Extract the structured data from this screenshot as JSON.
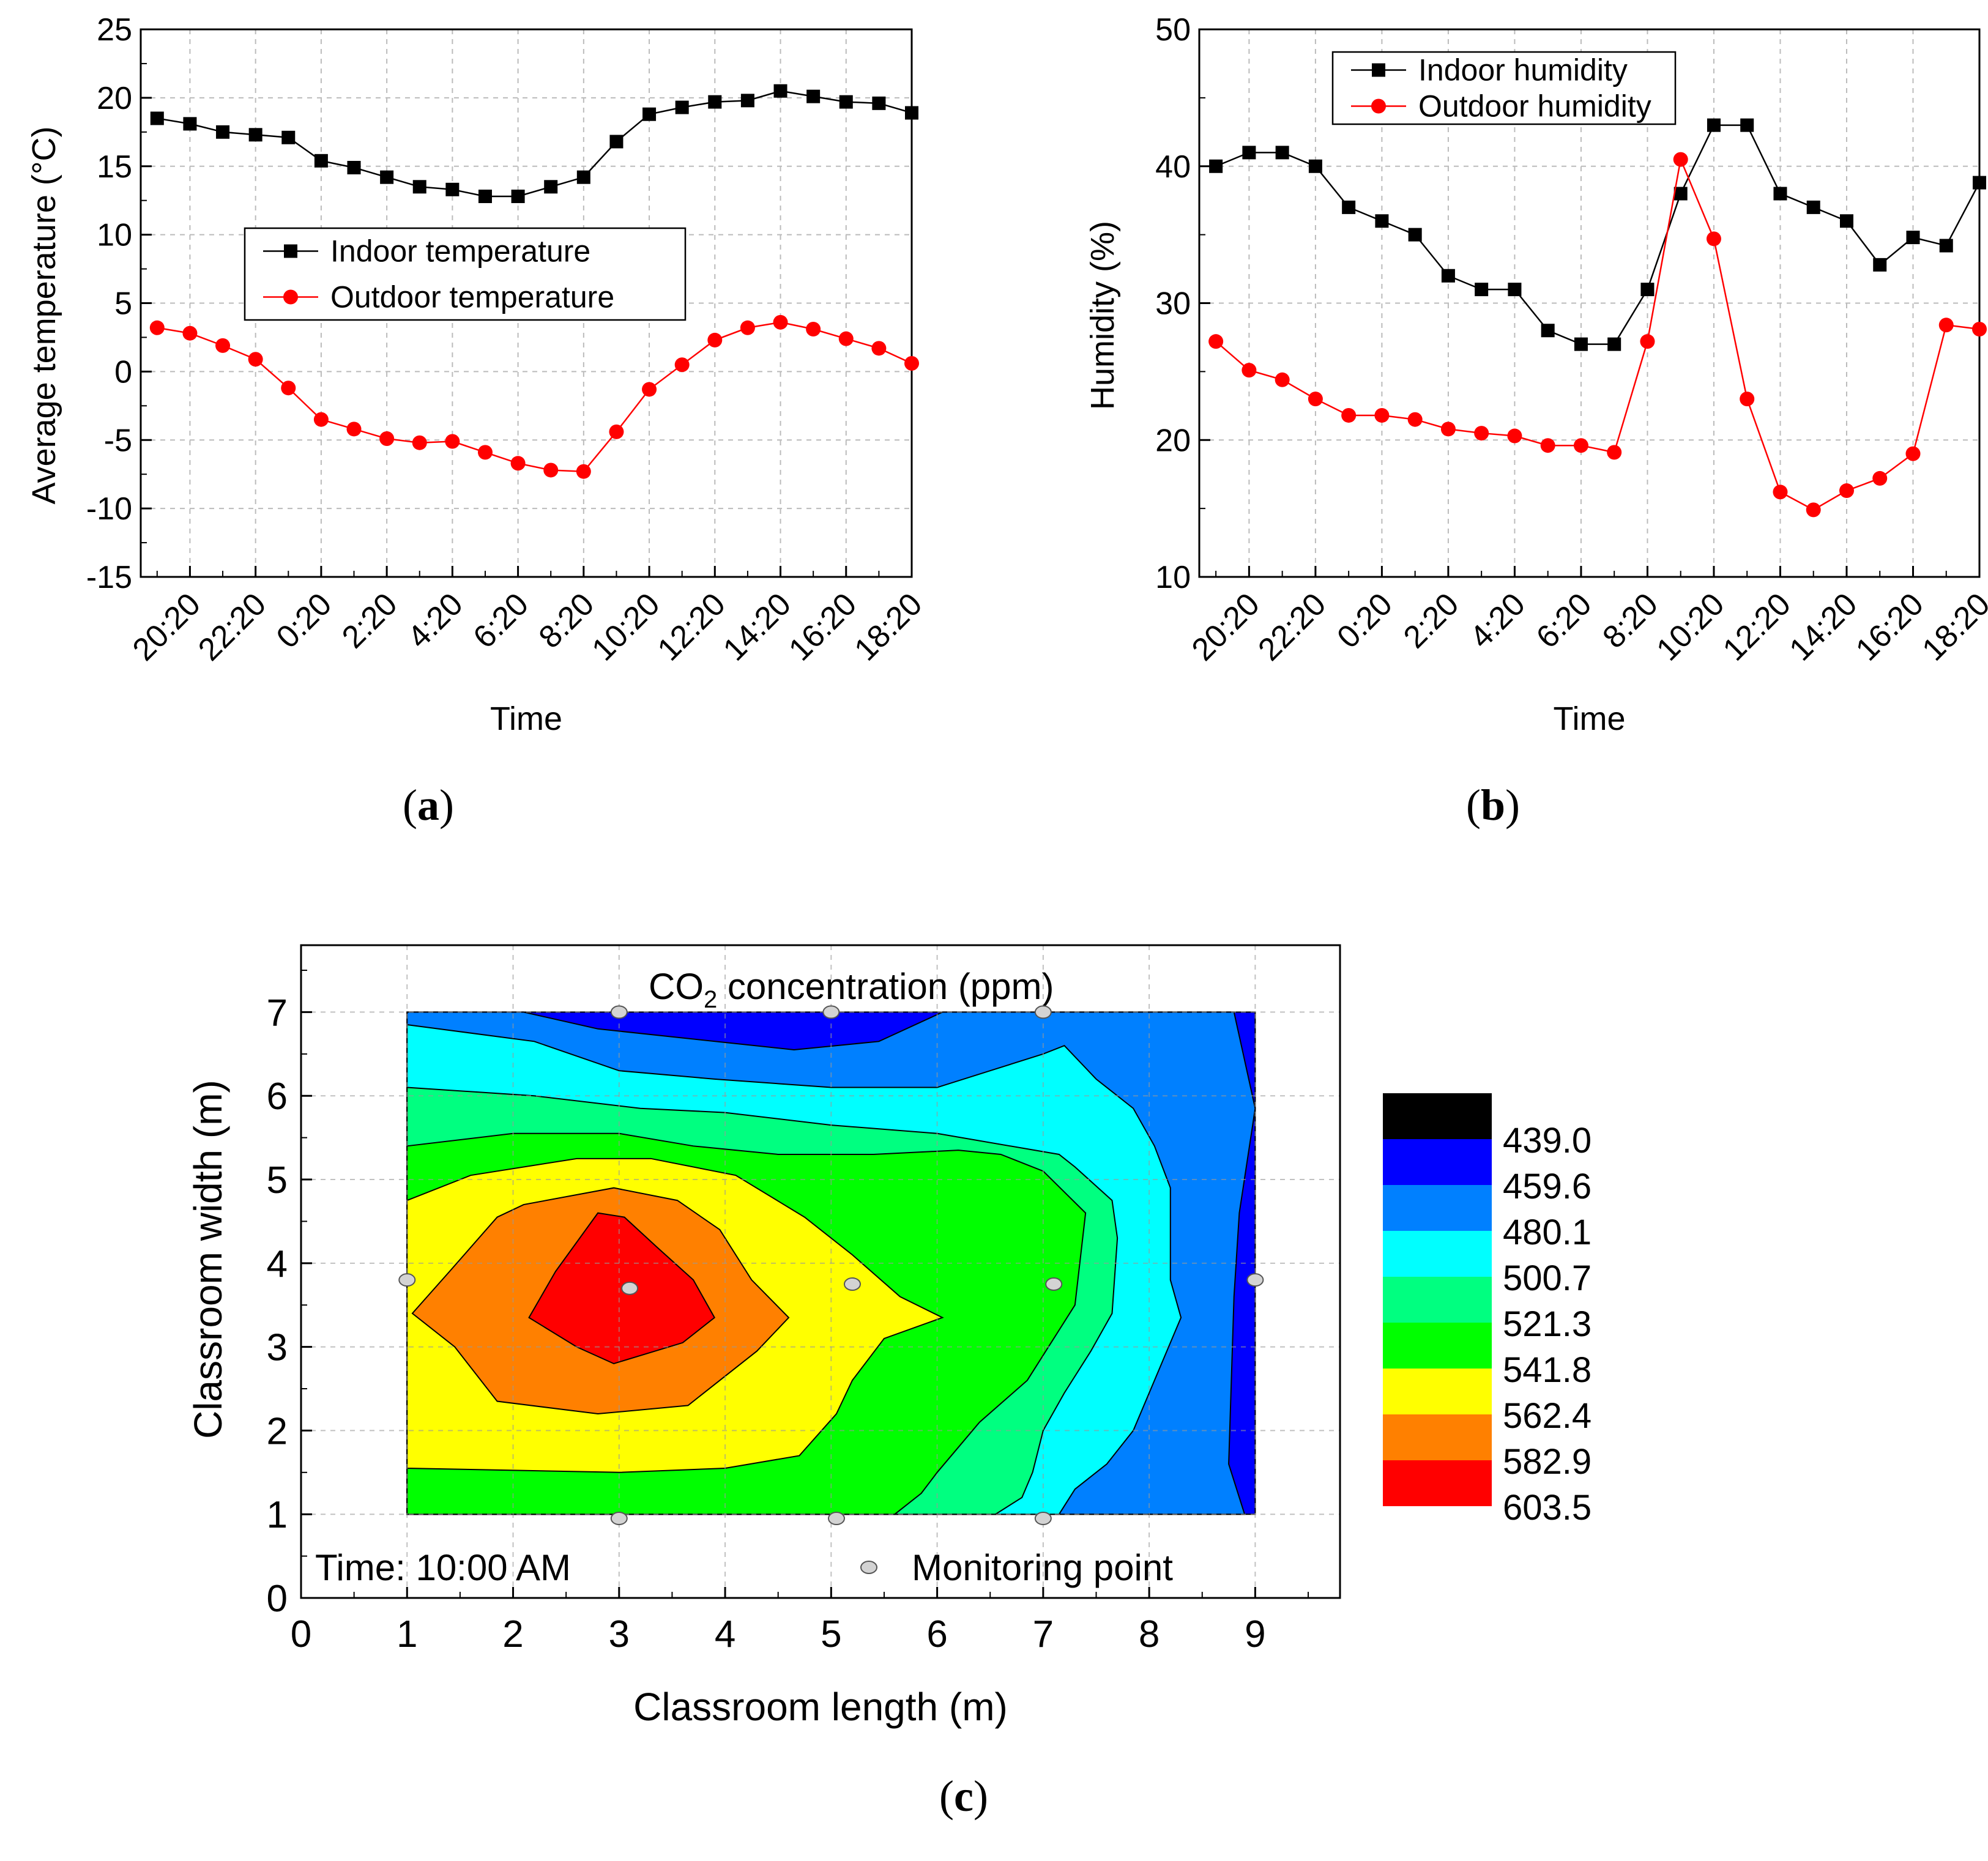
{
  "chart_data": [
    {
      "type": "line",
      "panel_label": "a",
      "xlabel": "Time",
      "ylabel": "Average temperature (°C)",
      "ylim": [
        -15,
        25
      ],
      "yticks": [
        -15,
        -10,
        -5,
        0,
        5,
        10,
        15,
        20,
        25
      ],
      "x_tick_labels": [
        "20:20",
        "22:20",
        "0:20",
        "2:20",
        "4:20",
        "6:20",
        "8:20",
        "10:20",
        "12:20",
        "14:20",
        "16:20",
        "18:20"
      ],
      "x": [
        0,
        1,
        2,
        3,
        4,
        5,
        6,
        7,
        8,
        9,
        10,
        11,
        12,
        13,
        14,
        15,
        16,
        17,
        18,
        19,
        20,
        21,
        22,
        23
      ],
      "grid": true,
      "legend_position": "center-left",
      "series": [
        {
          "name": "Indoor temperature",
          "color": "#000000",
          "marker": "square",
          "values": [
            18.5,
            18.1,
            17.5,
            17.3,
            17.1,
            15.4,
            14.9,
            14.2,
            13.5,
            13.3,
            12.8,
            12.8,
            13.5,
            14.2,
            16.8,
            18.8,
            19.3,
            19.7,
            19.8,
            20.5,
            20.1,
            19.7,
            19.6,
            18.9
          ]
        },
        {
          "name": "Outdoor temperature",
          "color": "#ff0000",
          "marker": "circle",
          "values": [
            3.2,
            2.8,
            1.9,
            0.9,
            -1.2,
            -3.5,
            -4.2,
            -4.9,
            -5.2,
            -5.1,
            -5.9,
            -6.7,
            -7.2,
            -7.3,
            -4.4,
            -1.3,
            0.5,
            2.3,
            3.2,
            3.6,
            3.1,
            2.4,
            1.7,
            0.6
          ]
        }
      ]
    },
    {
      "type": "line",
      "panel_label": "b",
      "xlabel": "Time",
      "ylabel": "Humidity (%)",
      "ylim": [
        10,
        50
      ],
      "yticks": [
        10,
        20,
        30,
        40,
        50
      ],
      "x_tick_labels": [
        "20:20",
        "22:20",
        "0:20",
        "2:20",
        "4:20",
        "6:20",
        "8:20",
        "10:20",
        "12:20",
        "14:20",
        "16:20",
        "18:20"
      ],
      "x": [
        0,
        1,
        2,
        3,
        4,
        5,
        6,
        7,
        8,
        9,
        10,
        11,
        12,
        13,
        14,
        15,
        16,
        17,
        18,
        19,
        20,
        21,
        22,
        23
      ],
      "grid": true,
      "legend_position": "top-left",
      "series": [
        {
          "name": "Indoor humidity",
          "color": "#000000",
          "marker": "square",
          "values": [
            40,
            41,
            41,
            40,
            37,
            36,
            35,
            32,
            31,
            31,
            28,
            27,
            27,
            31,
            38,
            43,
            43,
            38,
            37,
            36,
            32.8,
            34.8,
            34.2,
            38.8
          ]
        },
        {
          "name": "Outdoor humidity",
          "color": "#ff0000",
          "marker": "circle",
          "values": [
            27.2,
            25.1,
            24.4,
            23,
            21.8,
            21.8,
            21.5,
            20.8,
            20.5,
            20.3,
            19.6,
            19.6,
            19.1,
            27.2,
            40.5,
            34.7,
            23,
            16.2,
            14.9,
            16.3,
            17.2,
            19,
            28.4,
            28.1
          ]
        }
      ]
    },
    {
      "type": "heatmap",
      "panel_label": "c",
      "title": "CO",
      "title_subscript": "2",
      "title_suffix": " concentration (ppm)",
      "xlabel": "Classroom length (m)",
      "ylabel": "Classroom width (m)",
      "xlim": [
        0,
        9.8
      ],
      "ylim": [
        0,
        7.8
      ],
      "xticks": [
        0,
        1,
        2,
        3,
        4,
        5,
        6,
        7,
        8,
        9
      ],
      "yticks": [
        0,
        1,
        2,
        3,
        4,
        5,
        6,
        7
      ],
      "annotation": "Time: 10:00 AM",
      "legend_label": "Monitoring point",
      "colorbar": {
        "labels": [
          "439.0",
          "459.6",
          "480.1",
          "500.7",
          "521.3",
          "541.8",
          "562.4",
          "582.9",
          "603.5"
        ],
        "colors": [
          "#000000",
          "#0000ff",
          "#0080ff",
          "#00ffff",
          "#00ff80",
          "#00ff00",
          "#ffff00",
          "#ff8000",
          "#ff0000"
        ]
      },
      "monitoring_points": [
        [
          3,
          7
        ],
        [
          5,
          7
        ],
        [
          7,
          7
        ],
        [
          1,
          3.8
        ],
        [
          3.1,
          3.7
        ],
        [
          5.2,
          3.75
        ],
        [
          7.1,
          3.75
        ],
        [
          9,
          3.8
        ],
        [
          3,
          0.95
        ],
        [
          5.05,
          0.95
        ],
        [
          7,
          0.95
        ]
      ],
      "contour_levels": [
        {
          "level": "439.0",
          "color": "#0000ff",
          "polygon": [
            [
              1.0,
              7.0
            ],
            [
              9.0,
              7.0
            ],
            [
              9.0,
              1.0
            ],
            [
              1.0,
              1.0
            ]
          ]
        },
        {
          "level": "459.6",
          "color": "#0080ff",
          "polygon": [
            [
              1.0,
              7.0
            ],
            [
              1.0,
              1.0
            ],
            [
              8.9,
              1.0
            ],
            [
              8.75,
              1.6
            ],
            [
              8.8,
              3.6
            ],
            [
              8.85,
              4.6
            ],
            [
              9.0,
              5.85
            ],
            [
              8.8,
              7.0
            ],
            [
              6.05,
              7.0
            ],
            [
              5.45,
              6.65
            ],
            [
              4.65,
              6.55
            ],
            [
              2.8,
              6.8
            ],
            [
              2.1,
              7.0
            ]
          ]
        },
        {
          "level": "480.1",
          "color": "#00ffff",
          "polygon": [
            [
              1.0,
              6.85
            ],
            [
              2.2,
              6.65
            ],
            [
              3.0,
              6.3
            ],
            [
              3.9,
              6.2
            ],
            [
              5.0,
              6.1
            ],
            [
              6.0,
              6.1
            ],
            [
              6.5,
              6.3
            ],
            [
              7.0,
              6.5
            ],
            [
              7.2,
              6.6
            ],
            [
              7.5,
              6.2
            ],
            [
              7.85,
              5.85
            ],
            [
              8.05,
              5.4
            ],
            [
              8.2,
              4.9
            ],
            [
              8.2,
              3.8
            ],
            [
              8.3,
              3.35
            ],
            [
              8.05,
              2.6
            ],
            [
              7.85,
              2.0
            ],
            [
              7.6,
              1.6
            ],
            [
              7.3,
              1.3
            ],
            [
              7.15,
              1.0
            ],
            [
              1.0,
              1.0
            ]
          ]
        },
        {
          "level": "500.7",
          "color": "#00ff80",
          "polygon": [
            [
              1.0,
              6.1
            ],
            [
              2.2,
              6.0
            ],
            [
              3.2,
              5.85
            ],
            [
              4.0,
              5.8
            ],
            [
              5.0,
              5.65
            ],
            [
              6.0,
              5.55
            ],
            [
              7.15,
              5.3
            ],
            [
              7.3,
              5.15
            ],
            [
              7.65,
              4.75
            ],
            [
              7.7,
              4.3
            ],
            [
              7.65,
              3.4
            ],
            [
              7.45,
              2.95
            ],
            [
              7.2,
              2.45
            ],
            [
              7.0,
              2.0
            ],
            [
              6.9,
              1.5
            ],
            [
              6.8,
              1.2
            ],
            [
              6.55,
              1.0
            ],
            [
              1.0,
              1.0
            ]
          ]
        },
        {
          "level": "521.3",
          "color": "#00ff00",
          "polygon": [
            [
              1.0,
              5.4
            ],
            [
              2.0,
              5.55
            ],
            [
              3.0,
              5.55
            ],
            [
              3.7,
              5.4
            ],
            [
              4.5,
              5.3
            ],
            [
              5.4,
              5.3
            ],
            [
              6.2,
              5.35
            ],
            [
              6.6,
              5.3
            ],
            [
              7.0,
              5.1
            ],
            [
              7.4,
              4.6
            ],
            [
              7.3,
              3.5
            ],
            [
              6.85,
              2.6
            ],
            [
              6.4,
              2.1
            ],
            [
              6.0,
              1.5
            ],
            [
              5.85,
              1.25
            ],
            [
              5.6,
              1.0
            ],
            [
              1.0,
              1.0
            ]
          ]
        },
        {
          "level": "541.8",
          "color": "#ffff00",
          "polygon": [
            [
              1.0,
              4.75
            ],
            [
              1.6,
              5.05
            ],
            [
              2.6,
              5.25
            ],
            [
              3.3,
              5.25
            ],
            [
              4.1,
              5.05
            ],
            [
              4.75,
              4.55
            ],
            [
              5.2,
              4.1
            ],
            [
              5.65,
              3.6
            ],
            [
              6.05,
              3.35
            ],
            [
              5.5,
              3.1
            ],
            [
              5.2,
              2.6
            ],
            [
              5.05,
              2.2
            ],
            [
              4.7,
              1.7
            ],
            [
              4.0,
              1.55
            ],
            [
              3.0,
              1.5
            ],
            [
              1.0,
              1.55
            ]
          ]
        },
        {
          "level": "562.4",
          "color": "#ff8000",
          "polygon": [
            [
              1.85,
              4.55
            ],
            [
              2.1,
              4.7
            ],
            [
              2.95,
              4.9
            ],
            [
              3.55,
              4.75
            ],
            [
              3.95,
              4.4
            ],
            [
              4.25,
              3.8
            ],
            [
              4.6,
              3.35
            ],
            [
              4.3,
              2.95
            ],
            [
              3.65,
              2.3
            ],
            [
              2.8,
              2.2
            ],
            [
              1.85,
              2.35
            ],
            [
              1.45,
              3.0
            ],
            [
              1.05,
              3.4
            ],
            [
              1.4,
              3.9
            ]
          ]
        },
        {
          "level": "582.9",
          "color": "#ff0000",
          "polygon": [
            [
              2.4,
              3.9
            ],
            [
              2.8,
              4.6
            ],
            [
              3.05,
              4.55
            ],
            [
              3.35,
              4.2
            ],
            [
              3.7,
              3.8
            ],
            [
              3.9,
              3.35
            ],
            [
              3.6,
              3.05
            ],
            [
              2.95,
              2.8
            ],
            [
              2.6,
              3.0
            ],
            [
              2.15,
              3.35
            ]
          ]
        }
      ]
    }
  ]
}
